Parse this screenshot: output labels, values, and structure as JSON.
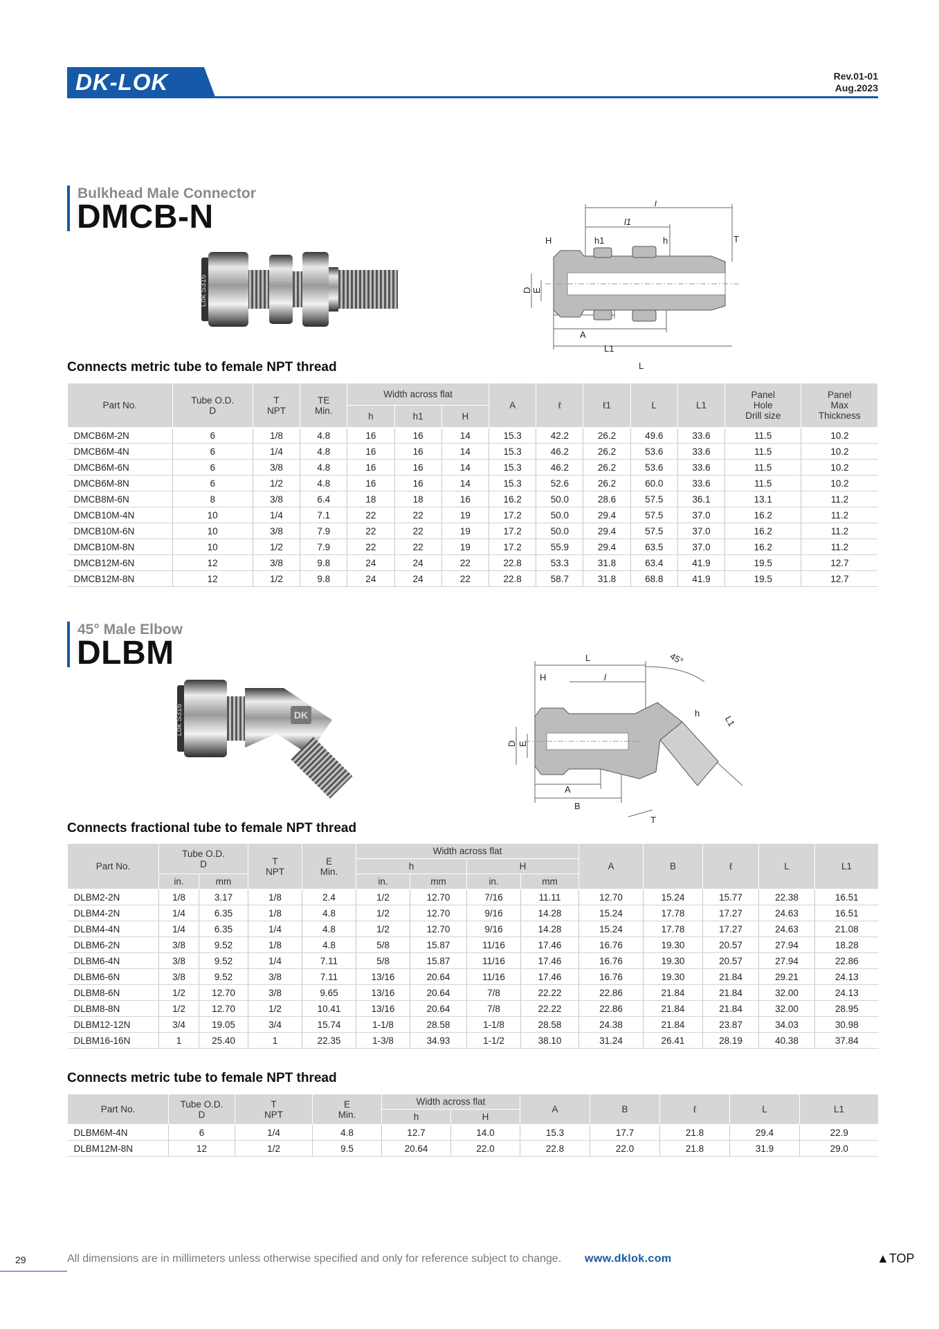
{
  "brand": {
    "logo_text": "DK-LOK",
    "logo_color": "#1559a8"
  },
  "header": {
    "rev": "Rev.01-01",
    "date": "Aug.2023"
  },
  "dmcb": {
    "subtitle": "Bulkhead Male Connector",
    "title": "DMCB-N",
    "caption": "Connects metric tube to female NPT thread",
    "photo_stamp": "Lok S316",
    "drawing_labels": {
      "l": "l",
      "l1": "l1",
      "h1": "h1",
      "H": "H",
      "h": "h",
      "T": "T",
      "D": "D",
      "E": "E",
      "A": "A",
      "L1": "L1",
      "L": "L"
    },
    "head": {
      "part": "Part No.",
      "tube": "Tube O.D.\nD",
      "t": "T\nNPT",
      "te": "TE\nMin.",
      "waf": "Width across flat",
      "h": "h",
      "h1": "h1",
      "H": "H",
      "a": "A",
      "l": "ℓ",
      "l1": "ℓ1",
      "L": "L",
      "L1": "L1",
      "hole": "Panel\nHole\nDrill size",
      "thick": "Panel\nMax\nThickness"
    },
    "rows": [
      [
        "DMCB6M-2N",
        "6",
        "1/8",
        "4.8",
        "16",
        "16",
        "14",
        "15.3",
        "42.2",
        "26.2",
        "49.6",
        "33.6",
        "11.5",
        "10.2"
      ],
      [
        "DMCB6M-4N",
        "6",
        "1/4",
        "4.8",
        "16",
        "16",
        "14",
        "15.3",
        "46.2",
        "26.2",
        "53.6",
        "33.6",
        "11.5",
        "10.2"
      ],
      [
        "DMCB6M-6N",
        "6",
        "3/8",
        "4.8",
        "16",
        "16",
        "14",
        "15.3",
        "46.2",
        "26.2",
        "53.6",
        "33.6",
        "11.5",
        "10.2"
      ],
      [
        "DMCB6M-8N",
        "6",
        "1/2",
        "4.8",
        "16",
        "16",
        "14",
        "15.3",
        "52.6",
        "26.2",
        "60.0",
        "33.6",
        "11.5",
        "10.2"
      ],
      [
        "DMCB8M-6N",
        "8",
        "3/8",
        "6.4",
        "18",
        "18",
        "16",
        "16.2",
        "50.0",
        "28.6",
        "57.5",
        "36.1",
        "13.1",
        "11.2"
      ],
      [
        "DMCB10M-4N",
        "10",
        "1/4",
        "7.1",
        "22",
        "22",
        "19",
        "17.2",
        "50.0",
        "29.4",
        "57.5",
        "37.0",
        "16.2",
        "11.2"
      ],
      [
        "DMCB10M-6N",
        "10",
        "3/8",
        "7.9",
        "22",
        "22",
        "19",
        "17.2",
        "50.0",
        "29.4",
        "57.5",
        "37.0",
        "16.2",
        "11.2"
      ],
      [
        "DMCB10M-8N",
        "10",
        "1/2",
        "7.9",
        "22",
        "22",
        "19",
        "17.2",
        "55.9",
        "29.4",
        "63.5",
        "37.0",
        "16.2",
        "11.2"
      ],
      [
        "DMCB12M-6N",
        "12",
        "3/8",
        "9.8",
        "24",
        "24",
        "22",
        "22.8",
        "53.3",
        "31.8",
        "63.4",
        "41.9",
        "19.5",
        "12.7"
      ],
      [
        "DMCB12M-8N",
        "12",
        "1/2",
        "9.8",
        "24",
        "24",
        "22",
        "22.8",
        "58.7",
        "31.8",
        "68.8",
        "41.9",
        "19.5",
        "12.7"
      ]
    ]
  },
  "dlbm": {
    "subtitle": "45° Male Elbow",
    "title": "DLBM",
    "photo_stamp": "Lok S316",
    "photo_badge": "DK",
    "drawing_labels": {
      "L": "L",
      "angle": "45°",
      "H": "H",
      "l": "l",
      "h": "h",
      "L1": "L1",
      "D": "D",
      "E": "E",
      "A": "A",
      "B": "B",
      "T": "T"
    },
    "caption_frac": "Connects fractional tube to female NPT thread",
    "frac_head": {
      "part": "Part No.",
      "tube": "Tube O.D.\nD",
      "t": "T\nNPT",
      "e": "E\nMin.",
      "waf": "Width across flat",
      "h": "h",
      "H": "H",
      "in": "in.",
      "mm": "mm",
      "a": "A",
      "b": "B",
      "l": "ℓ",
      "L": "L",
      "L1": "L1"
    },
    "frac_rows": [
      [
        "DLBM2-2N",
        "1/8",
        "3.17",
        "1/8",
        "2.4",
        "1/2",
        "12.70",
        "7/16",
        "11.11",
        "12.70",
        "15.24",
        "15.77",
        "22.38",
        "16.51"
      ],
      [
        "DLBM4-2N",
        "1/4",
        "6.35",
        "1/8",
        "4.8",
        "1/2",
        "12.70",
        "9/16",
        "14.28",
        "15.24",
        "17.78",
        "17.27",
        "24.63",
        "16.51"
      ],
      [
        "DLBM4-4N",
        "1/4",
        "6.35",
        "1/4",
        "4.8",
        "1/2",
        "12.70",
        "9/16",
        "14.28",
        "15.24",
        "17.78",
        "17.27",
        "24.63",
        "21.08"
      ],
      [
        "DLBM6-2N",
        "3/8",
        "9.52",
        "1/8",
        "4.8",
        "5/8",
        "15.87",
        "11/16",
        "17.46",
        "16.76",
        "19.30",
        "20.57",
        "27.94",
        "18.28"
      ],
      [
        "DLBM6-4N",
        "3/8",
        "9.52",
        "1/4",
        "7.11",
        "5/8",
        "15.87",
        "11/16",
        "17.46",
        "16.76",
        "19.30",
        "20.57",
        "27.94",
        "22.86"
      ],
      [
        "DLBM6-6N",
        "3/8",
        "9.52",
        "3/8",
        "7.11",
        "13/16",
        "20.64",
        "11/16",
        "17.46",
        "16.76",
        "19.30",
        "21.84",
        "29.21",
        "24.13"
      ],
      [
        "DLBM8-6N",
        "1/2",
        "12.70",
        "3/8",
        "9.65",
        "13/16",
        "20.64",
        "7/8",
        "22.22",
        "22.86",
        "21.84",
        "21.84",
        "32.00",
        "24.13"
      ],
      [
        "DLBM8-8N",
        "1/2",
        "12.70",
        "1/2",
        "10.41",
        "13/16",
        "20.64",
        "7/8",
        "22.22",
        "22.86",
        "21.84",
        "21.84",
        "32.00",
        "28.95"
      ],
      [
        "DLBM12-12N",
        "3/4",
        "19.05",
        "3/4",
        "15.74",
        "1-1/8",
        "28.58",
        "1-1/8",
        "28.58",
        "24.38",
        "21.84",
        "23.87",
        "34.03",
        "30.98"
      ],
      [
        "DLBM16-16N",
        "1",
        "25.40",
        "1",
        "22.35",
        "1-3/8",
        "34.93",
        "1-1/2",
        "38.10",
        "31.24",
        "26.41",
        "28.19",
        "40.38",
        "37.84"
      ]
    ],
    "caption_metric": "Connects metric tube to female NPT thread",
    "metric_head": {
      "part": "Part No.",
      "tube": "Tube O.D.\nD",
      "t": "T\nNPT",
      "e": "E\nMin.",
      "waf": "Width across flat",
      "h": "h",
      "H": "H",
      "a": "A",
      "b": "B",
      "l": "ℓ",
      "L": "L",
      "L1": "L1"
    },
    "metric_rows": [
      [
        "DLBM6M-4N",
        "6",
        "1/4",
        "4.8",
        "12.7",
        "14.0",
        "15.3",
        "17.7",
        "21.8",
        "29.4",
        "22.9"
      ],
      [
        "DLBM12M-8N",
        "12",
        "1/2",
        "9.5",
        "20.64",
        "22.0",
        "22.8",
        "22.0",
        "21.8",
        "31.9",
        "29.0"
      ]
    ]
  },
  "footer": {
    "page": "29",
    "note": "All dimensions are in millimeters unless otherwise specified and only for reference subject to change.",
    "url": "www.dklok.com",
    "top": "▲TOP"
  }
}
